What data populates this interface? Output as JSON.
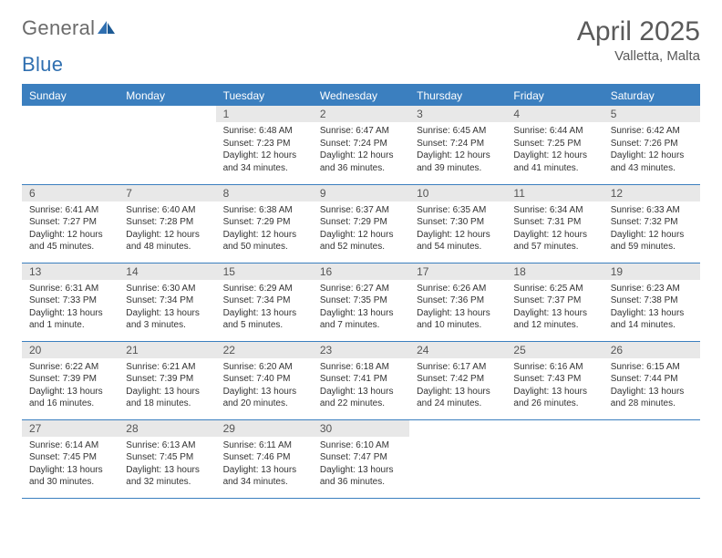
{
  "logo": {
    "word1": "General",
    "word2": "Blue"
  },
  "title": "April 2025",
  "subtitle": "Valletta, Malta",
  "colors": {
    "accent": "#3b7fbf",
    "daynum_bg": "#e8e8e8",
    "text": "#333333",
    "muted": "#5a5a5a",
    "logo_grey": "#6b6b6b",
    "logo_blue": "#2f6fb0",
    "white": "#ffffff"
  },
  "headers": [
    "Sunday",
    "Monday",
    "Tuesday",
    "Wednesday",
    "Thursday",
    "Friday",
    "Saturday"
  ],
  "weeks": [
    [
      {
        "n": "",
        "t": ""
      },
      {
        "n": "",
        "t": ""
      },
      {
        "n": "1",
        "t": "Sunrise: 6:48 AM\nSunset: 7:23 PM\nDaylight: 12 hours and 34 minutes."
      },
      {
        "n": "2",
        "t": "Sunrise: 6:47 AM\nSunset: 7:24 PM\nDaylight: 12 hours and 36 minutes."
      },
      {
        "n": "3",
        "t": "Sunrise: 6:45 AM\nSunset: 7:24 PM\nDaylight: 12 hours and 39 minutes."
      },
      {
        "n": "4",
        "t": "Sunrise: 6:44 AM\nSunset: 7:25 PM\nDaylight: 12 hours and 41 minutes."
      },
      {
        "n": "5",
        "t": "Sunrise: 6:42 AM\nSunset: 7:26 PM\nDaylight: 12 hours and 43 minutes."
      }
    ],
    [
      {
        "n": "6",
        "t": "Sunrise: 6:41 AM\nSunset: 7:27 PM\nDaylight: 12 hours and 45 minutes."
      },
      {
        "n": "7",
        "t": "Sunrise: 6:40 AM\nSunset: 7:28 PM\nDaylight: 12 hours and 48 minutes."
      },
      {
        "n": "8",
        "t": "Sunrise: 6:38 AM\nSunset: 7:29 PM\nDaylight: 12 hours and 50 minutes."
      },
      {
        "n": "9",
        "t": "Sunrise: 6:37 AM\nSunset: 7:29 PM\nDaylight: 12 hours and 52 minutes."
      },
      {
        "n": "10",
        "t": "Sunrise: 6:35 AM\nSunset: 7:30 PM\nDaylight: 12 hours and 54 minutes."
      },
      {
        "n": "11",
        "t": "Sunrise: 6:34 AM\nSunset: 7:31 PM\nDaylight: 12 hours and 57 minutes."
      },
      {
        "n": "12",
        "t": "Sunrise: 6:33 AM\nSunset: 7:32 PM\nDaylight: 12 hours and 59 minutes."
      }
    ],
    [
      {
        "n": "13",
        "t": "Sunrise: 6:31 AM\nSunset: 7:33 PM\nDaylight: 13 hours and 1 minute."
      },
      {
        "n": "14",
        "t": "Sunrise: 6:30 AM\nSunset: 7:34 PM\nDaylight: 13 hours and 3 minutes."
      },
      {
        "n": "15",
        "t": "Sunrise: 6:29 AM\nSunset: 7:34 PM\nDaylight: 13 hours and 5 minutes."
      },
      {
        "n": "16",
        "t": "Sunrise: 6:27 AM\nSunset: 7:35 PM\nDaylight: 13 hours and 7 minutes."
      },
      {
        "n": "17",
        "t": "Sunrise: 6:26 AM\nSunset: 7:36 PM\nDaylight: 13 hours and 10 minutes."
      },
      {
        "n": "18",
        "t": "Sunrise: 6:25 AM\nSunset: 7:37 PM\nDaylight: 13 hours and 12 minutes."
      },
      {
        "n": "19",
        "t": "Sunrise: 6:23 AM\nSunset: 7:38 PM\nDaylight: 13 hours and 14 minutes."
      }
    ],
    [
      {
        "n": "20",
        "t": "Sunrise: 6:22 AM\nSunset: 7:39 PM\nDaylight: 13 hours and 16 minutes."
      },
      {
        "n": "21",
        "t": "Sunrise: 6:21 AM\nSunset: 7:39 PM\nDaylight: 13 hours and 18 minutes."
      },
      {
        "n": "22",
        "t": "Sunrise: 6:20 AM\nSunset: 7:40 PM\nDaylight: 13 hours and 20 minutes."
      },
      {
        "n": "23",
        "t": "Sunrise: 6:18 AM\nSunset: 7:41 PM\nDaylight: 13 hours and 22 minutes."
      },
      {
        "n": "24",
        "t": "Sunrise: 6:17 AM\nSunset: 7:42 PM\nDaylight: 13 hours and 24 minutes."
      },
      {
        "n": "25",
        "t": "Sunrise: 6:16 AM\nSunset: 7:43 PM\nDaylight: 13 hours and 26 minutes."
      },
      {
        "n": "26",
        "t": "Sunrise: 6:15 AM\nSunset: 7:44 PM\nDaylight: 13 hours and 28 minutes."
      }
    ],
    [
      {
        "n": "27",
        "t": "Sunrise: 6:14 AM\nSunset: 7:45 PM\nDaylight: 13 hours and 30 minutes."
      },
      {
        "n": "28",
        "t": "Sunrise: 6:13 AM\nSunset: 7:45 PM\nDaylight: 13 hours and 32 minutes."
      },
      {
        "n": "29",
        "t": "Sunrise: 6:11 AM\nSunset: 7:46 PM\nDaylight: 13 hours and 34 minutes."
      },
      {
        "n": "30",
        "t": "Sunrise: 6:10 AM\nSunset: 7:47 PM\nDaylight: 13 hours and 36 minutes."
      },
      {
        "n": "",
        "t": ""
      },
      {
        "n": "",
        "t": ""
      },
      {
        "n": "",
        "t": ""
      }
    ]
  ]
}
